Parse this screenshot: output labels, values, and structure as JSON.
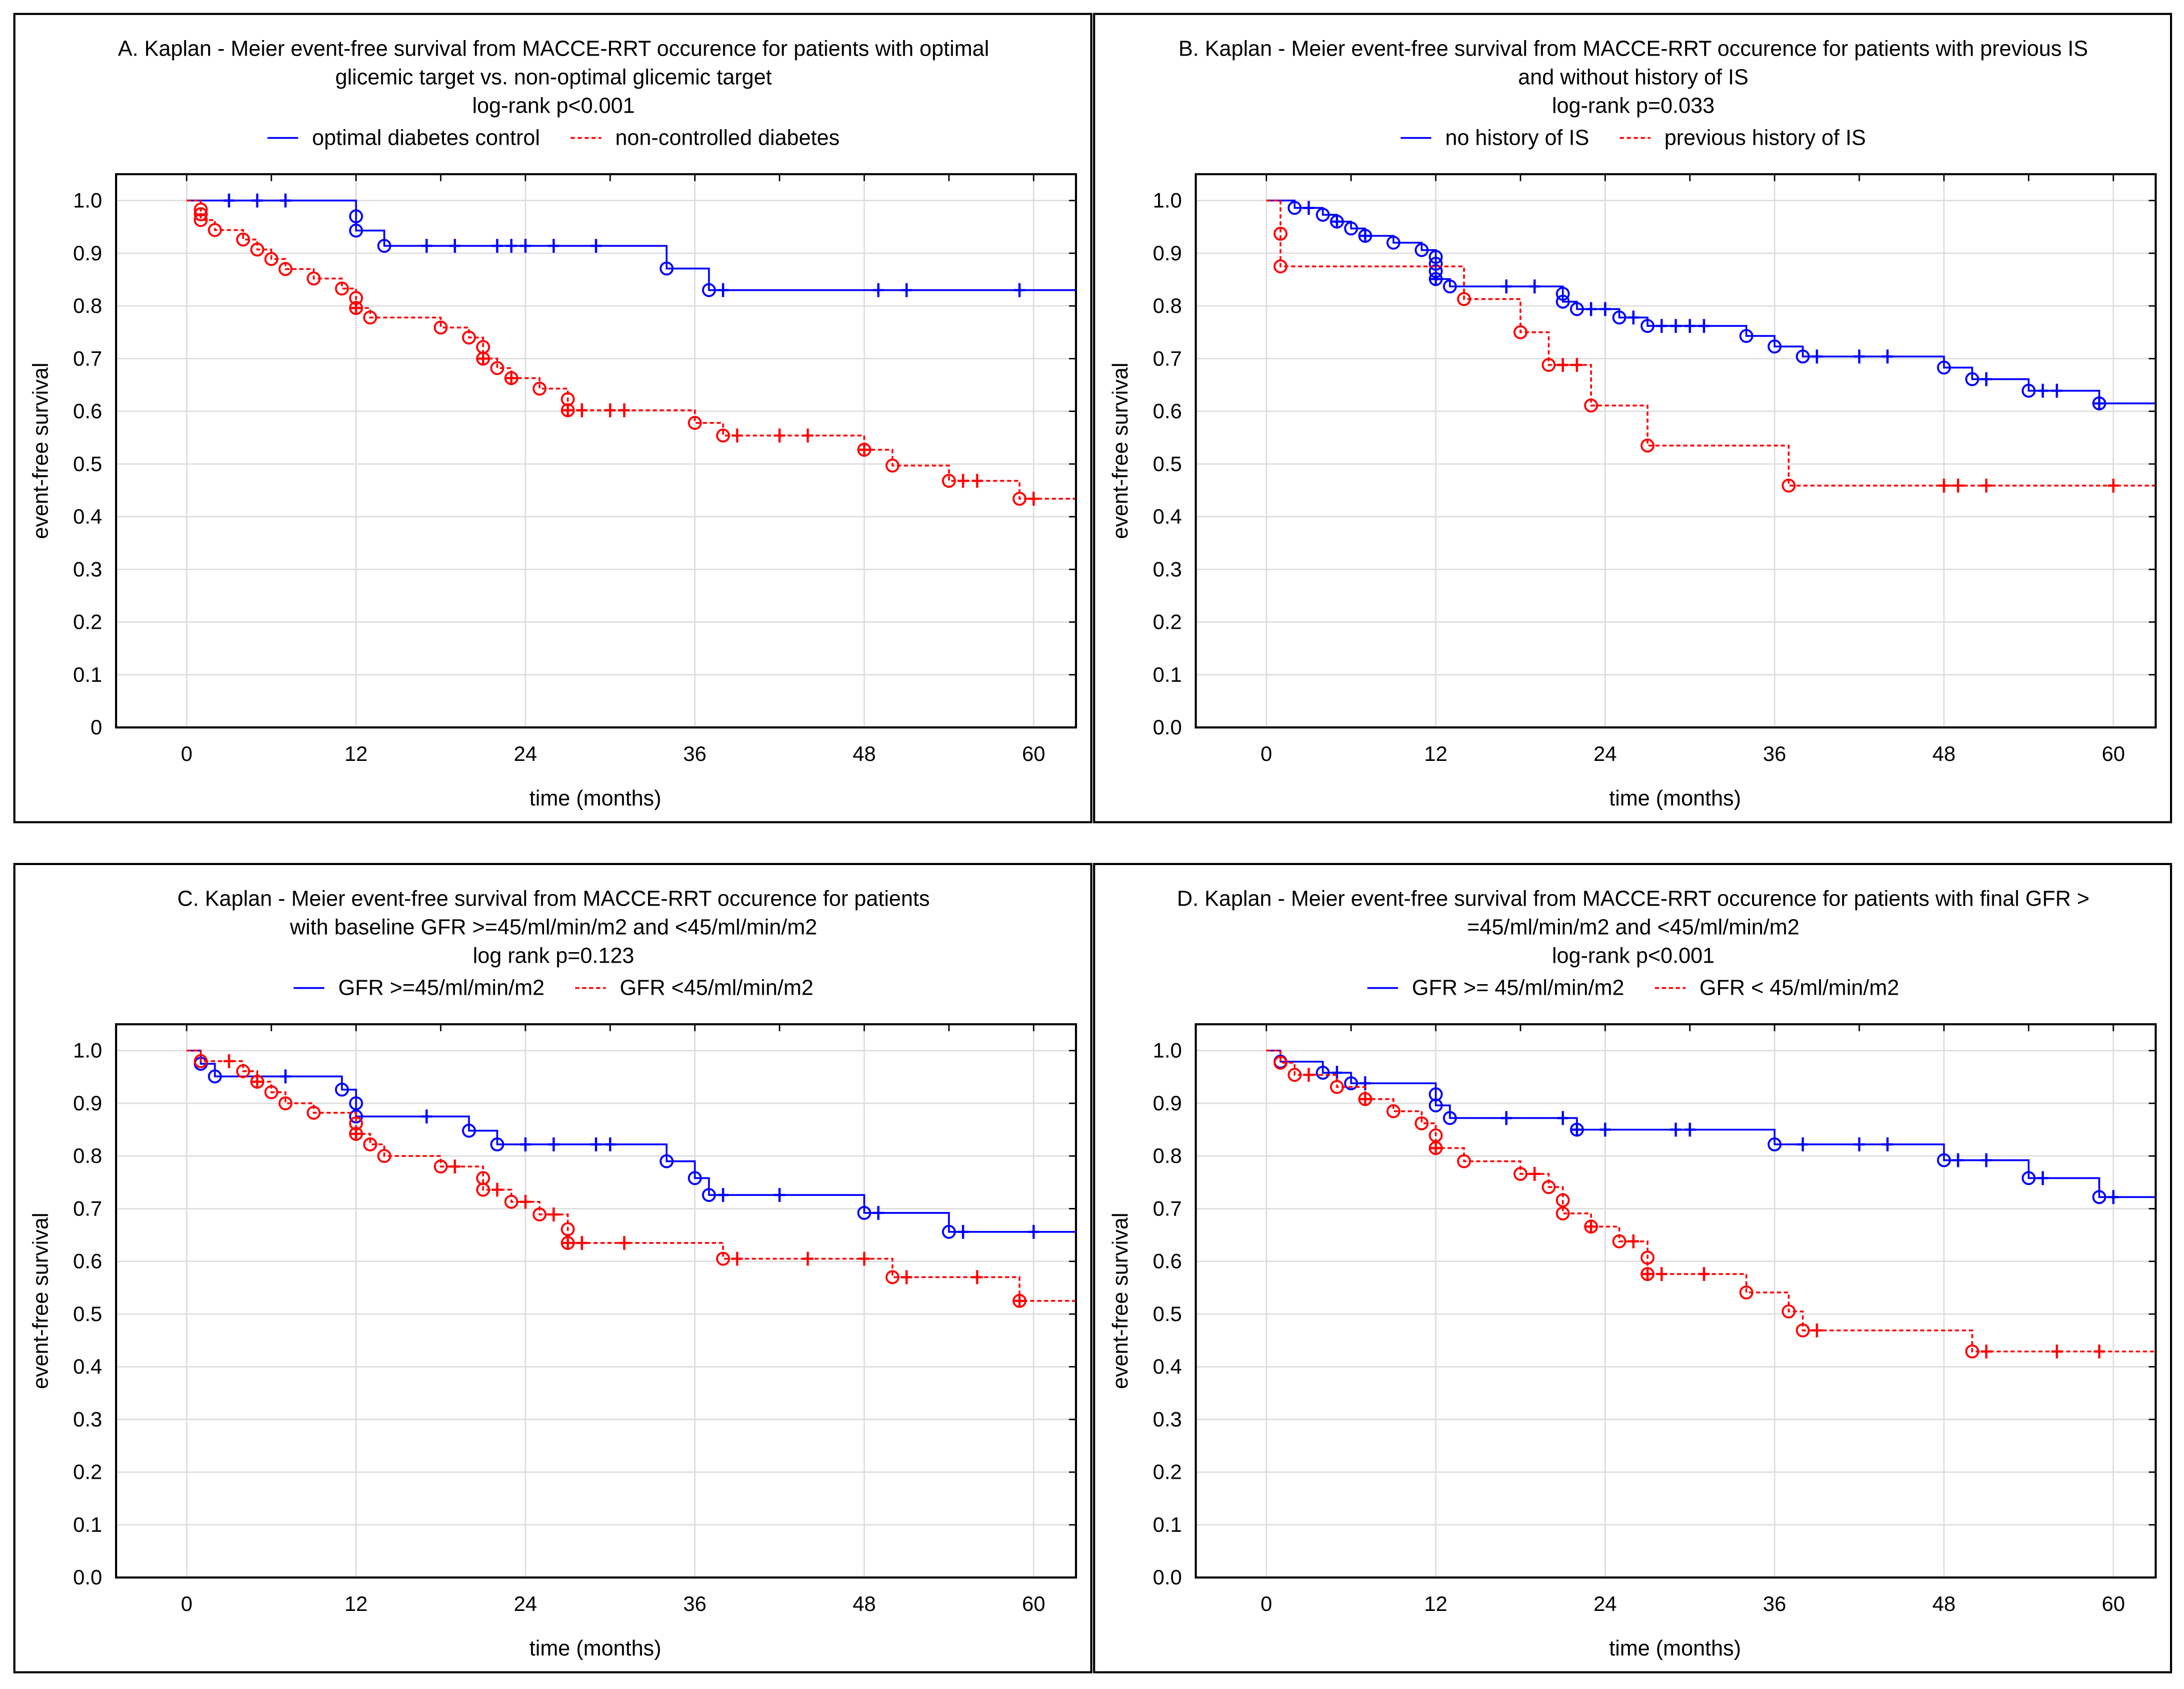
{
  "colors": {
    "series1": "#0000ff",
    "series2": "#ff0000",
    "grid": "#dddddd"
  },
  "chart_data": [
    {
      "type": "line",
      "subtype": "kaplan-meier-step",
      "title": [
        "A.  Kaplan - Meier event-free survival from MACCE-RRT occurence for patients with optimal",
        "glicemic target vs. non-optimal glicemic target",
        "log-rank p<0.001"
      ],
      "xlabel": "time (months)",
      "ylabel": "event-free survival",
      "xlim": [
        -5,
        63
      ],
      "ylim": [
        0,
        1.05
      ],
      "grid": true,
      "xticks": [
        "0",
        "12",
        "24",
        "36",
        "48",
        "60"
      ],
      "yticks": [
        "0",
        "0.1",
        "0.2",
        "0.3",
        "0.4",
        "0.5",
        "0.6",
        "0.7",
        "0.8",
        "0.9",
        "1.0"
      ],
      "series": [
        {
          "name": "optimal diabetes control",
          "style": "solid",
          "events": [
            [
              12,
              0.97
            ],
            [
              12,
              0.943
            ],
            [
              14,
              0.914
            ],
            [
              34,
              0.871
            ],
            [
              37,
              0.83
            ]
          ],
          "censored": [
            3,
            5,
            7,
            17,
            19,
            22,
            23,
            24,
            26,
            29,
            38,
            49,
            51,
            59
          ]
        },
        {
          "name": "non-controlled diabetes",
          "style": "dashed",
          "events": [
            [
              1,
              0.983
            ],
            [
              1,
              0.974
            ],
            [
              1,
              0.963
            ],
            [
              2,
              0.944
            ],
            [
              4,
              0.926
            ],
            [
              5,
              0.907
            ],
            [
              6,
              0.889
            ],
            [
              7,
              0.87
            ],
            [
              9,
              0.852
            ],
            [
              11,
              0.833
            ],
            [
              12,
              0.815
            ],
            [
              12,
              0.796
            ],
            [
              13,
              0.778
            ],
            [
              18,
              0.759
            ],
            [
              20,
              0.74
            ],
            [
              21,
              0.722
            ],
            [
              21,
              0.7
            ],
            [
              22,
              0.682
            ],
            [
              23,
              0.663
            ],
            [
              25,
              0.643
            ],
            [
              27,
              0.623
            ],
            [
              27,
              0.602
            ],
            [
              36,
              0.578
            ],
            [
              38,
              0.554
            ],
            [
              48,
              0.527
            ],
            [
              50,
              0.497
            ],
            [
              54,
              0.468
            ],
            [
              59,
              0.434
            ]
          ],
          "censored": [
            12,
            21,
            23,
            27,
            28,
            30,
            31,
            39,
            42,
            44,
            48,
            55,
            56,
            60
          ]
        }
      ]
    },
    {
      "type": "line",
      "subtype": "kaplan-meier-step",
      "title": [
        "B.  Kaplan - Meier event-free survival from MACCE-RRT occurence for patients with previous IS",
        "and without history of IS",
        "log-rank p=0.033"
      ],
      "xlabel": "time (months)",
      "ylabel": "event-free survival",
      "xlim": [
        -5,
        63
      ],
      "ylim": [
        0,
        1.05
      ],
      "grid": true,
      "xticks": [
        "0",
        "12",
        "24",
        "36",
        "48",
        "60"
      ],
      "yticks": [
        "0.0",
        "0.1",
        "0.2",
        "0.3",
        "0.4",
        "0.5",
        "0.6",
        "0.7",
        "0.8",
        "0.9",
        "1.0"
      ],
      "series": [
        {
          "name": "no history of IS",
          "style": "solid",
          "events": [
            [
              2,
              0.986
            ],
            [
              4,
              0.973
            ],
            [
              5,
              0.96
            ],
            [
              6,
              0.947
            ],
            [
              7,
              0.933
            ],
            [
              9,
              0.92
            ],
            [
              11,
              0.906
            ],
            [
              12,
              0.893
            ],
            [
              12,
              0.88
            ],
            [
              12,
              0.866
            ],
            [
              12,
              0.851
            ],
            [
              13,
              0.837
            ],
            [
              21,
              0.823
            ],
            [
              21,
              0.808
            ],
            [
              22,
              0.794
            ],
            [
              25,
              0.778
            ],
            [
              27,
              0.762
            ],
            [
              34,
              0.743
            ],
            [
              36,
              0.723
            ],
            [
              38,
              0.704
            ],
            [
              48,
              0.683
            ],
            [
              50,
              0.661
            ],
            [
              54,
              0.639
            ],
            [
              59,
              0.615
            ]
          ],
          "censored": [
            3,
            5,
            7,
            12,
            17,
            19,
            23,
            24,
            26,
            28,
            29,
            30,
            31,
            39,
            42,
            44,
            51,
            55,
            56,
            59
          ]
        },
        {
          "name": "previous history of IS",
          "style": "dashed",
          "events": [
            [
              1,
              0.937
            ],
            [
              1,
              0.875
            ],
            [
              14,
              0.813
            ],
            [
              18,
              0.75
            ],
            [
              20,
              0.688
            ],
            [
              23,
              0.611
            ],
            [
              27,
              0.535
            ],
            [
              37,
              0.459
            ]
          ],
          "censored": [
            21,
            22,
            48,
            49,
            51,
            60
          ]
        }
      ]
    },
    {
      "type": "line",
      "subtype": "kaplan-meier-step",
      "title": [
        "C. Kaplan - Meier event-free survival from MACCE-RRT occurence for patients",
        "with baseline GFR >=45/ml/min/m2 and <45/ml/min/m2",
        "log rank p=0.123"
      ],
      "xlabel": "time (months)",
      "ylabel": "event-free survival",
      "xlim": [
        -5,
        63
      ],
      "ylim": [
        0,
        1.05
      ],
      "grid": true,
      "xticks": [
        "0",
        "12",
        "24",
        "36",
        "48",
        "60"
      ],
      "yticks": [
        "0.0",
        "0.1",
        "0.2",
        "0.3",
        "0.4",
        "0.5",
        "0.6",
        "0.7",
        "0.8",
        "0.9",
        "1.0"
      ],
      "series": [
        {
          "name": "GFR >=45/ml/min/m2",
          "style": "solid",
          "events": [
            [
              1,
              0.975
            ],
            [
              2,
              0.951
            ],
            [
              11,
              0.926
            ],
            [
              12,
              0.9
            ],
            [
              12,
              0.875
            ],
            [
              20,
              0.848
            ],
            [
              22,
              0.822
            ],
            [
              34,
              0.79
            ],
            [
              36,
              0.758
            ],
            [
              37,
              0.726
            ],
            [
              48,
              0.692
            ],
            [
              54,
              0.656
            ]
          ],
          "censored": [
            7,
            17,
            24,
            26,
            29,
            30,
            38,
            42,
            49,
            55,
            60
          ]
        },
        {
          "name": "GFR <45/ml/min/m2",
          "style": "dashed",
          "events": [
            [
              1,
              0.98
            ],
            [
              4,
              0.961
            ],
            [
              5,
              0.941
            ],
            [
              6,
              0.921
            ],
            [
              7,
              0.9
            ],
            [
              9,
              0.882
            ],
            [
              12,
              0.862
            ],
            [
              12,
              0.842
            ],
            [
              13,
              0.822
            ],
            [
              14,
              0.8
            ],
            [
              18,
              0.78
            ],
            [
              21,
              0.758
            ],
            [
              21,
              0.736
            ],
            [
              23,
              0.713
            ],
            [
              25,
              0.689
            ],
            [
              27,
              0.661
            ],
            [
              27,
              0.635
            ],
            [
              38,
              0.605
            ],
            [
              50,
              0.57
            ],
            [
              59,
              0.525
            ]
          ],
          "censored": [
            3,
            5,
            12,
            19,
            22,
            24,
            26,
            27,
            28,
            31,
            39,
            44,
            48,
            51,
            56,
            59
          ]
        }
      ]
    },
    {
      "type": "line",
      "subtype": "kaplan-meier-step",
      "title": [
        "D.  Kaplan - Meier event-free survival from MACCE-RRT occurence for patients with final GFR >",
        "=45/ml/min/m2 and <45/ml/min/m2",
        "log-rank p<0.001"
      ],
      "xlabel": "time (months)",
      "ylabel": "event-free survival",
      "xlim": [
        -5,
        63
      ],
      "ylim": [
        0,
        1.05
      ],
      "grid": true,
      "xticks": [
        "0",
        "12",
        "24",
        "36",
        "48",
        "60"
      ],
      "yticks": [
        "0.0",
        "0.1",
        "0.2",
        "0.3",
        "0.4",
        "0.5",
        "0.6",
        "0.7",
        "0.8",
        "0.9",
        "1.0"
      ],
      "series": [
        {
          "name": "GFR >= 45/ml/min/m2",
          "style": "solid",
          "events": [
            [
              1,
              0.979
            ],
            [
              4,
              0.958
            ],
            [
              6,
              0.938
            ],
            [
              12,
              0.917
            ],
            [
              12,
              0.896
            ],
            [
              13,
              0.872
            ],
            [
              22,
              0.85
            ],
            [
              36,
              0.822
            ],
            [
              48,
              0.792
            ],
            [
              54,
              0.758
            ],
            [
              59,
              0.722
            ]
          ],
          "censored": [
            5,
            7,
            17,
            21,
            22,
            24,
            29,
            30,
            38,
            42,
            44,
            49,
            51,
            55,
            60
          ]
        },
        {
          "name": "GFR < 45/ml/min/m2",
          "style": "dashed",
          "events": [
            [
              1,
              0.977
            ],
            [
              2,
              0.954
            ],
            [
              5,
              0.931
            ],
            [
              7,
              0.908
            ],
            [
              9,
              0.885
            ],
            [
              11,
              0.862
            ],
            [
              12,
              0.839
            ],
            [
              12,
              0.815
            ],
            [
              14,
              0.79
            ],
            [
              18,
              0.766
            ],
            [
              20,
              0.741
            ],
            [
              21,
              0.716
            ],
            [
              21,
              0.691
            ],
            [
              23,
              0.666
            ],
            [
              25,
              0.638
            ],
            [
              27,
              0.607
            ],
            [
              27,
              0.576
            ],
            [
              34,
              0.541
            ],
            [
              37,
              0.505
            ],
            [
              38,
              0.469
            ],
            [
              50,
              0.429
            ]
          ],
          "censored": [
            3,
            7,
            12,
            19,
            23,
            26,
            27,
            28,
            31,
            39,
            51,
            56,
            59
          ]
        }
      ]
    }
  ]
}
